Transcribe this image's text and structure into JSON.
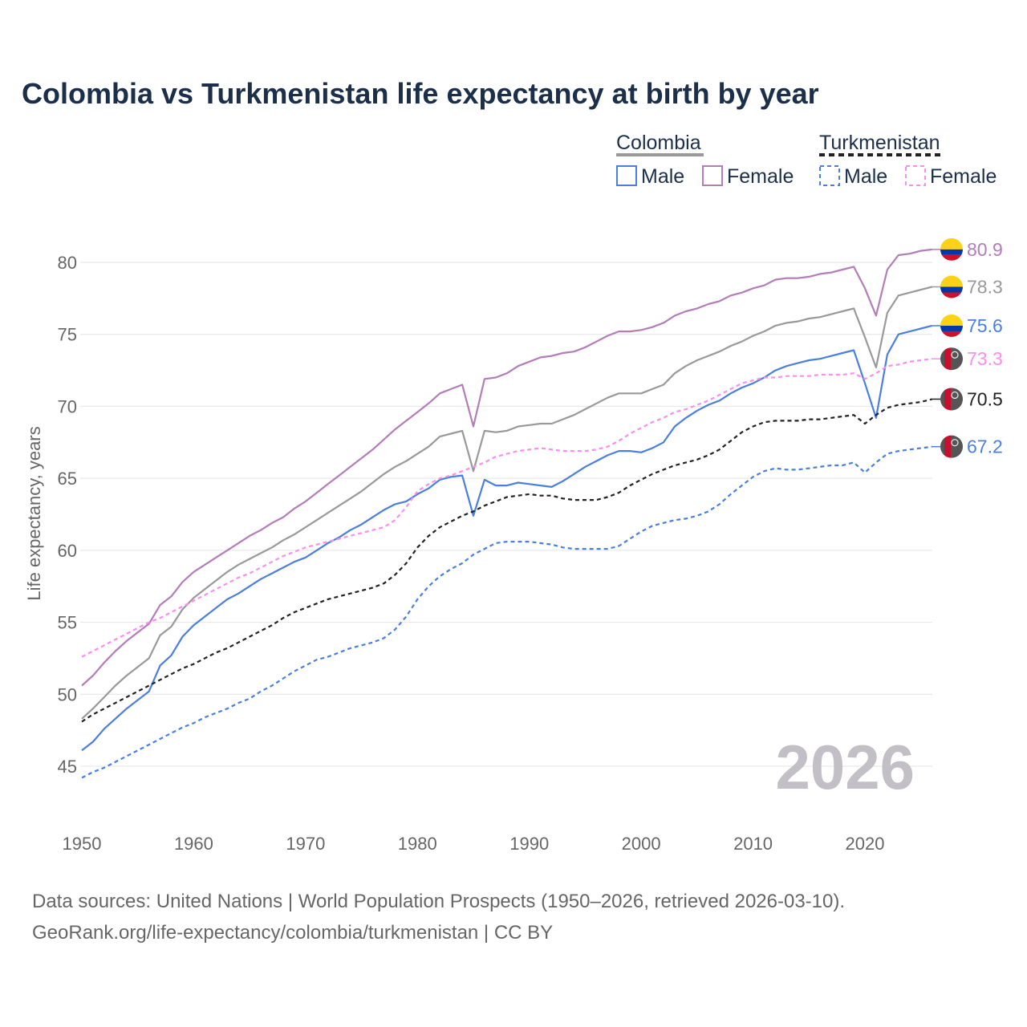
{
  "chart_data": {
    "type": "line",
    "title": "Colombia vs Turkmenistan life expectancy at birth by year",
    "xlabel": "",
    "ylabel": "Life expectancy, years",
    "xlim": [
      1950,
      2026
    ],
    "ylim": [
      43,
      83
    ],
    "x_ticks": [
      1950,
      1960,
      1970,
      1980,
      1990,
      2000,
      2010,
      2020
    ],
    "y_ticks": [
      45,
      50,
      55,
      60,
      65,
      70,
      75,
      80
    ],
    "grid": true,
    "watermark_year": "2026",
    "legend": {
      "placement": "top-right",
      "groups": [
        {
          "country": "Colombia",
          "line": "solid",
          "color": "#999999",
          "items": [
            {
              "label": "Male",
              "color": "#4a7fe0"
            },
            {
              "label": "Female",
              "color": "#b47cb8"
            }
          ]
        },
        {
          "country": "Turkmenistan",
          "line": "dashed",
          "color": "#222222",
          "items": [
            {
              "label": "Male",
              "color": "#4a7fe0"
            },
            {
              "label": "Female",
              "color": "#f78ef0"
            }
          ]
        }
      ]
    },
    "x": [
      1950,
      1951,
      1952,
      1953,
      1954,
      1955,
      1956,
      1957,
      1958,
      1959,
      1960,
      1961,
      1962,
      1963,
      1964,
      1965,
      1966,
      1967,
      1968,
      1969,
      1970,
      1971,
      1972,
      1973,
      1974,
      1975,
      1976,
      1977,
      1978,
      1979,
      1980,
      1981,
      1982,
      1983,
      1984,
      1985,
      1986,
      1987,
      1988,
      1989,
      1990,
      1991,
      1992,
      1993,
      1994,
      1995,
      1996,
      1997,
      1998,
      1999,
      2000,
      2001,
      2002,
      2003,
      2004,
      2005,
      2006,
      2007,
      2008,
      2009,
      2010,
      2011,
      2012,
      2013,
      2014,
      2015,
      2016,
      2017,
      2018,
      2019,
      2020,
      2021,
      2022,
      2023,
      2024,
      2025,
      2026
    ],
    "series": [
      {
        "name": "Colombia Female",
        "country": "Colombia",
        "color": "#b47cb8",
        "dashed": false,
        "end_label": "80.9",
        "values": [
          50.6,
          51.3,
          52.2,
          53.0,
          53.7,
          54.3,
          54.9,
          56.2,
          56.8,
          57.8,
          58.5,
          59.0,
          59.5,
          60.0,
          60.5,
          61.0,
          61.4,
          61.9,
          62.3,
          62.9,
          63.4,
          64.0,
          64.6,
          65.2,
          65.8,
          66.4,
          67.0,
          67.7,
          68.4,
          69.0,
          69.6,
          70.2,
          70.9,
          71.2,
          71.5,
          68.6,
          71.9,
          72.0,
          72.3,
          72.8,
          73.1,
          73.4,
          73.5,
          73.7,
          73.8,
          74.1,
          74.5,
          74.9,
          75.2,
          75.2,
          75.3,
          75.5,
          75.8,
          76.3,
          76.6,
          76.8,
          77.1,
          77.3,
          77.7,
          77.9,
          78.2,
          78.4,
          78.8,
          78.9,
          78.9,
          79.0,
          79.2,
          79.3,
          79.5,
          79.7,
          78.2,
          76.3,
          79.5,
          80.5,
          80.6,
          80.8,
          80.9
        ]
      },
      {
        "name": "Colombia",
        "country": "Colombia",
        "color": "#999999",
        "dashed": false,
        "end_label": "78.3",
        "values": [
          48.3,
          49.0,
          49.8,
          50.6,
          51.3,
          51.9,
          52.5,
          54.1,
          54.7,
          55.9,
          56.7,
          57.3,
          57.9,
          58.5,
          59.0,
          59.4,
          59.8,
          60.2,
          60.7,
          61.1,
          61.6,
          62.1,
          62.6,
          63.1,
          63.6,
          64.1,
          64.7,
          65.3,
          65.8,
          66.2,
          66.7,
          67.2,
          67.9,
          68.1,
          68.3,
          65.5,
          68.3,
          68.2,
          68.3,
          68.6,
          68.7,
          68.8,
          68.8,
          69.1,
          69.4,
          69.8,
          70.2,
          70.6,
          70.9,
          70.9,
          70.9,
          71.2,
          71.5,
          72.3,
          72.8,
          73.2,
          73.5,
          73.8,
          74.2,
          74.5,
          74.9,
          75.2,
          75.6,
          75.8,
          75.9,
          76.1,
          76.2,
          76.4,
          76.6,
          76.8,
          74.8,
          72.7,
          76.5,
          77.7,
          77.9,
          78.1,
          78.3
        ]
      },
      {
        "name": "Colombia Male",
        "country": "Colombia",
        "color": "#4a7fe0",
        "dashed": false,
        "end_label": "75.6",
        "values": [
          46.1,
          46.7,
          47.6,
          48.3,
          49.0,
          49.6,
          50.2,
          52.0,
          52.7,
          54.0,
          54.8,
          55.4,
          56.0,
          56.6,
          57.0,
          57.5,
          58.0,
          58.4,
          58.8,
          59.2,
          59.5,
          60.0,
          60.5,
          60.9,
          61.4,
          61.8,
          62.3,
          62.8,
          63.2,
          63.4,
          63.9,
          64.3,
          64.9,
          65.1,
          65.2,
          62.4,
          64.9,
          64.5,
          64.5,
          64.7,
          64.6,
          64.5,
          64.4,
          64.8,
          65.3,
          65.8,
          66.2,
          66.6,
          66.9,
          66.9,
          66.8,
          67.1,
          67.5,
          68.6,
          69.2,
          69.7,
          70.1,
          70.4,
          70.9,
          71.3,
          71.6,
          72.0,
          72.5,
          72.8,
          73.0,
          73.2,
          73.3,
          73.5,
          73.7,
          73.9,
          71.6,
          69.2,
          73.6,
          75.0,
          75.2,
          75.4,
          75.6
        ]
      },
      {
        "name": "Turkmenistan Female",
        "country": "Turkmenistan",
        "color": "#f78ef0",
        "dashed": true,
        "end_label": "73.3",
        "values": [
          52.6,
          53.0,
          53.4,
          53.8,
          54.2,
          54.6,
          55.0,
          55.3,
          55.7,
          56.1,
          56.5,
          56.9,
          57.3,
          57.7,
          58.1,
          58.4,
          58.8,
          59.2,
          59.6,
          59.9,
          60.2,
          60.4,
          60.6,
          60.8,
          61.0,
          61.2,
          61.4,
          61.6,
          62.1,
          63.0,
          64.1,
          64.6,
          65.0,
          65.2,
          65.5,
          65.8,
          66.1,
          66.5,
          66.7,
          66.9,
          67.0,
          67.1,
          67.0,
          66.9,
          66.9,
          66.9,
          67.0,
          67.2,
          67.6,
          68.1,
          68.5,
          68.9,
          69.2,
          69.6,
          69.8,
          70.1,
          70.4,
          70.8,
          71.2,
          71.6,
          71.8,
          72.0,
          72.0,
          72.1,
          72.1,
          72.1,
          72.2,
          72.2,
          72.2,
          72.3,
          71.9,
          72.3,
          72.8,
          72.9,
          73.1,
          73.2,
          73.3
        ]
      },
      {
        "name": "Turkmenistan",
        "country": "Turkmenistan",
        "color": "#222222",
        "dashed": true,
        "end_label": "70.5",
        "values": [
          48.1,
          48.6,
          49.0,
          49.4,
          49.8,
          50.2,
          50.6,
          51.0,
          51.4,
          51.8,
          52.1,
          52.5,
          52.9,
          53.2,
          53.6,
          54.0,
          54.4,
          54.8,
          55.3,
          55.7,
          56.0,
          56.3,
          56.6,
          56.8,
          57.0,
          57.2,
          57.4,
          57.7,
          58.3,
          59.1,
          60.2,
          61.0,
          61.6,
          62.0,
          62.4,
          62.7,
          63.1,
          63.4,
          63.7,
          63.8,
          63.9,
          63.8,
          63.8,
          63.6,
          63.5,
          63.5,
          63.5,
          63.7,
          64.0,
          64.5,
          64.9,
          65.3,
          65.6,
          65.9,
          66.1,
          66.3,
          66.6,
          67.0,
          67.6,
          68.2,
          68.6,
          68.9,
          69.0,
          69.0,
          69.0,
          69.1,
          69.1,
          69.2,
          69.3,
          69.4,
          68.8,
          69.4,
          69.9,
          70.1,
          70.2,
          70.3,
          70.5
        ]
      },
      {
        "name": "Turkmenistan Male",
        "country": "Turkmenistan",
        "color": "#4a7fe0",
        "dashed": true,
        "end_label": "67.2",
        "values": [
          44.2,
          44.6,
          44.9,
          45.3,
          45.7,
          46.1,
          46.5,
          46.9,
          47.3,
          47.7,
          48.0,
          48.4,
          48.7,
          49.0,
          49.4,
          49.7,
          50.2,
          50.6,
          51.1,
          51.6,
          52.0,
          52.4,
          52.6,
          52.9,
          53.2,
          53.4,
          53.6,
          53.9,
          54.5,
          55.4,
          56.6,
          57.5,
          58.2,
          58.7,
          59.1,
          59.7,
          60.1,
          60.5,
          60.6,
          60.6,
          60.6,
          60.5,
          60.4,
          60.2,
          60.1,
          60.1,
          60.1,
          60.1,
          60.3,
          60.8,
          61.3,
          61.7,
          61.9,
          62.1,
          62.2,
          62.4,
          62.7,
          63.2,
          63.9,
          64.5,
          65.1,
          65.5,
          65.7,
          65.6,
          65.6,
          65.7,
          65.8,
          65.9,
          65.9,
          66.1,
          65.4,
          66.1,
          66.7,
          66.9,
          67.0,
          67.1,
          67.2
        ]
      }
    ],
    "source_lines": [
      "Data sources: United Nations | World Population Prospects (1950–2026, retrieved 2026-03-10).",
      "GeoRank.org/life-expectancy/colombia/turkmenistan | CC BY"
    ]
  }
}
